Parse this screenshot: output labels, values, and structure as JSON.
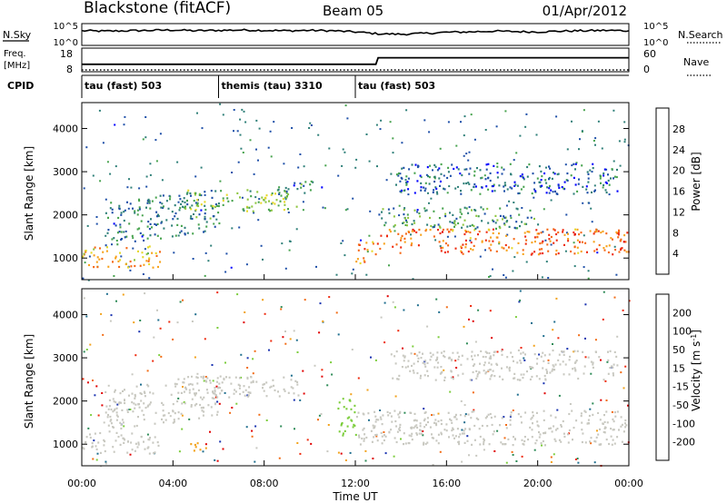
{
  "header": {
    "station": "Blackstone (fitACF)",
    "beam": "Beam 05",
    "date": "01/Apr/2012"
  },
  "chart_data": [
    {
      "type": "line",
      "panel": "noise",
      "left_label": "N.Sky",
      "left_ticks": [
        "10^5",
        "10^0"
      ],
      "right_label": "N.Search",
      "right_ticks": [
        "10^5",
        "10^0"
      ],
      "x": [
        0,
        1,
        2,
        3,
        4,
        5,
        6,
        7,
        8,
        9,
        10,
        11,
        12,
        13,
        14,
        15,
        16,
        17,
        18,
        19,
        20,
        21,
        22,
        23,
        24
      ],
      "series": [
        {
          "name": "N.Sky",
          "values": [
            3.6,
            3.5,
            3.6,
            3.7,
            3.8,
            3.6,
            3.7,
            3.8,
            3.7,
            3.6,
            3.7,
            3.6,
            3.3,
            2.8,
            2.7,
            2.9,
            3.2,
            3.3,
            3.5,
            3.4,
            3.3,
            3.5,
            3.6,
            3.7,
            3.6
          ]
        }
      ]
    },
    {
      "type": "line",
      "panel": "frequency",
      "left_label": "Freq.",
      "left_unit": "[MHz]",
      "left_ticks": [
        "18",
        "8"
      ],
      "right_label": "Nave",
      "right_ticks": [
        "60",
        "0"
      ],
      "x": [
        0,
        0.1,
        12.9,
        13.0,
        24
      ],
      "series": [
        {
          "name": "Freq.",
          "values": [
            11,
            11,
            11,
            14,
            14
          ]
        }
      ]
    },
    {
      "type": "table",
      "panel": "cpid",
      "label": "CPID",
      "segments": [
        {
          "start": 0,
          "end": 6,
          "text": "tau (fast) 503"
        },
        {
          "start": 6,
          "end": 12,
          "text": "themis (tau) 3310"
        },
        {
          "start": 12,
          "end": 24,
          "text": "tau (fast) 503"
        }
      ]
    },
    {
      "type": "heatmap",
      "panel": "power",
      "ylabel": "Slant Range [km]",
      "ylim": [
        500,
        4600
      ],
      "yticks": [
        1000,
        2000,
        3000,
        4000
      ],
      "colorbar_label": "Power [dB]",
      "colorbar_ticks": [
        28,
        24,
        20,
        16,
        12,
        8,
        4
      ],
      "colormap": [
        "#0000ff",
        "#1e4fa8",
        "#2e7f78",
        "#47a34e",
        "#8ec63f",
        "#e5d829",
        "#f7a21b",
        "#f56814",
        "#ee2a0e",
        "#e00000"
      ],
      "bands": [
        {
          "t0": 0.0,
          "t1": 3.5,
          "r0": 800,
          "r1": 1300,
          "power": 20
        },
        {
          "t0": 1.0,
          "t1": 6.0,
          "r0": 1300,
          "r1": 2300,
          "power": 8
        },
        {
          "t0": 4.5,
          "t1": 9.5,
          "r0": 2100,
          "r1": 2600,
          "power": 14
        },
        {
          "t0": 8.5,
          "t1": 10.5,
          "r0": 2500,
          "r1": 2800,
          "power": 8
        },
        {
          "t0": 12.0,
          "t1": 13.0,
          "r0": 900,
          "r1": 1400,
          "power": 22
        },
        {
          "t0": 13.0,
          "t1": 24.0,
          "r0": 1100,
          "r1": 1700,
          "power": 24
        },
        {
          "t0": 13.0,
          "t1": 20.0,
          "r0": 1700,
          "r1": 2200,
          "power": 10
        },
        {
          "t0": 13.5,
          "t1": 23.5,
          "r0": 2500,
          "r1": 3200,
          "power": 6
        }
      ]
    },
    {
      "type": "heatmap",
      "panel": "velocity",
      "ylabel": "Slant Range [km]",
      "ylim": [
        500,
        4600
      ],
      "yticks": [
        1000,
        2000,
        3000,
        4000
      ],
      "colorbar_label": "Velocity [m s^-1]",
      "colorbar_ticks": [
        200,
        100,
        50,
        15,
        -15,
        -50,
        -100,
        -200
      ],
      "colormap": [
        "#1a33b0",
        "#1f6e8e",
        "#2e8b57",
        "#7ccd3c",
        "#c8c8c0",
        "#f2a21b",
        "#f26b14",
        "#ee2a0e",
        "#e00000"
      ],
      "bands": [
        {
          "t0": 0.0,
          "t1": 3.5,
          "r0": 800,
          "r1": 1300,
          "velocity": 0
        },
        {
          "t0": 1.0,
          "t1": 6.0,
          "r0": 1300,
          "r1": 2300,
          "velocity": 0
        },
        {
          "t0": 4.5,
          "t1": 9.5,
          "r0": 2100,
          "r1": 2600,
          "velocity": 0
        },
        {
          "t0": 4.5,
          "t1": 5.5,
          "r0": 850,
          "r1": 1050,
          "velocity": -50
        },
        {
          "t0": 11.2,
          "t1": 12.0,
          "r0": 1100,
          "r1": 2100,
          "velocity": 30
        },
        {
          "t0": 12.0,
          "t1": 24.0,
          "r0": 1000,
          "r1": 1800,
          "velocity": 0
        },
        {
          "t0": 13.5,
          "t1": 23.5,
          "r0": 2500,
          "r1": 3200,
          "velocity": 0
        }
      ]
    }
  ],
  "time_axis": {
    "label": "Time UT",
    "ticks": [
      "00:00",
      "04:00",
      "08:00",
      "12:00",
      "16:00",
      "20:00",
      "00:00"
    ]
  }
}
